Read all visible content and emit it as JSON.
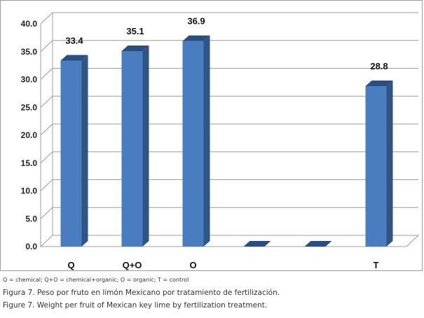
{
  "chart_data": {
    "type": "bar",
    "categories": [
      "Q",
      "Q+O",
      "O",
      "",
      "",
      "T"
    ],
    "values": [
      33.4,
      35.1,
      36.9,
      0,
      0,
      28.8
    ],
    "data_labels": [
      "33.4",
      "35.1",
      "36.9",
      "",
      "",
      "28.8"
    ],
    "y_ticks": [
      "0.0",
      "5.0",
      "10.0",
      "15.0",
      "20.0",
      "25.0",
      "30.0",
      "35.0",
      "40.0"
    ],
    "ylim": [
      0,
      40
    ],
    "grid": true,
    "three_d": true,
    "bar_color": "#4a7cc0",
    "bar_side_color": "#2f5587",
    "bar_top_color": "#2a4e84"
  },
  "captions": {
    "legend_note": "Q = chemical; Q+O = chemical+organic; O = organic; T = control",
    "spanish": "Figura 7. Peso por fruto en limón Mexicano por tratamiento de fertilización.",
    "english": "Figure 7. Weight per fruit of Mexican key lime by fertilization treatment."
  }
}
